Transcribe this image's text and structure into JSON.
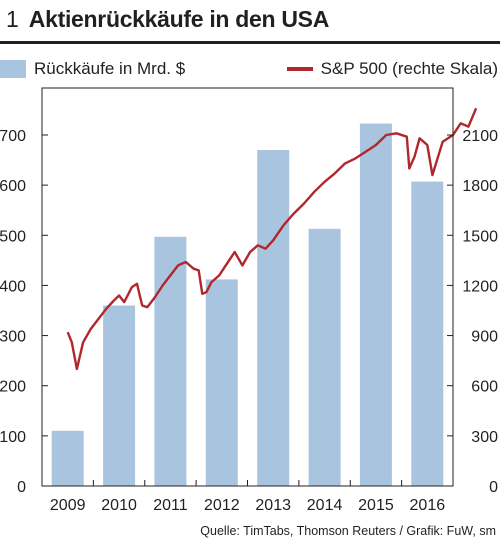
{
  "header": {
    "number": "1",
    "title": "Aktienrückkäufe in den USA"
  },
  "legend": {
    "bars": "Rückkäufe in Mrd. $",
    "line": "S&P 500 (rechte Skala)"
  },
  "footer": {
    "source": "Quelle: TimTabs, Thomson Reuters / Grafik: FuW, sm"
  },
  "colors": {
    "bar": "#a9c4de",
    "line": "#b0272d",
    "text": "#231f20"
  },
  "chart_data": {
    "type": "bar",
    "categories": [
      "2009",
      "2010",
      "2011",
      "2012",
      "2013",
      "2014",
      "2015",
      "2016"
    ],
    "series": [
      {
        "name": "Rückkäufe in Mrd. $",
        "type": "bar",
        "axis": "left",
        "values": [
          110,
          360,
          497,
          412,
          670,
          513,
          723,
          607
        ]
      },
      {
        "name": "S&P 500 (rechte Skala)",
        "type": "line",
        "axis": "right",
        "x": [
          2009.0,
          2009.08,
          2009.18,
          2009.3,
          2009.45,
          2009.6,
          2009.75,
          2009.9,
          2010.0,
          2010.1,
          2010.25,
          2010.35,
          2010.45,
          2010.55,
          2010.7,
          2010.85,
          2011.0,
          2011.15,
          2011.3,
          2011.45,
          2011.55,
          2011.62,
          2011.7,
          2011.8,
          2011.95,
          2012.1,
          2012.25,
          2012.4,
          2012.55,
          2012.7,
          2012.85,
          2013.0,
          2013.2,
          2013.4,
          2013.6,
          2013.8,
          2014.0,
          2014.2,
          2014.4,
          2014.6,
          2014.8,
          2015.0,
          2015.2,
          2015.4,
          2015.6,
          2015.65,
          2015.75,
          2015.85,
          2016.0,
          2016.1,
          2016.3,
          2016.5,
          2016.65,
          2016.8,
          2016.95
        ],
        "values": [
          920,
          860,
          700,
          860,
          940,
          1000,
          1060,
          1110,
          1140,
          1100,
          1190,
          1210,
          1080,
          1070,
          1130,
          1200,
          1260,
          1320,
          1340,
          1300,
          1290,
          1150,
          1160,
          1220,
          1260,
          1330,
          1400,
          1320,
          1400,
          1440,
          1420,
          1470,
          1560,
          1630,
          1690,
          1760,
          1820,
          1870,
          1930,
          1960,
          2000,
          2040,
          2100,
          2110,
          2090,
          1900,
          1970,
          2080,
          2040,
          1860,
          2060,
          2100,
          2170,
          2150,
          2260
        ]
      }
    ],
    "left_axis": {
      "ylim": [
        0,
        800
      ],
      "ticks": [
        0,
        100,
        200,
        300,
        400,
        500,
        600,
        700
      ]
    },
    "right_axis": {
      "ylim": [
        0,
        2400
      ],
      "ticks": [
        0,
        300,
        600,
        900,
        1200,
        1500,
        1800,
        2100
      ]
    },
    "grid": false
  }
}
